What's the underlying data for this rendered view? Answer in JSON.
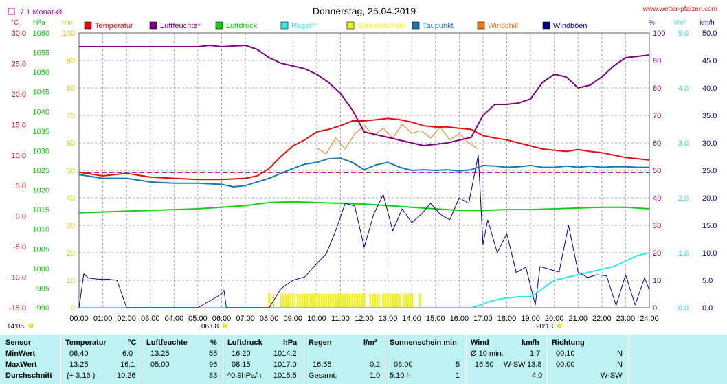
{
  "chart_data": {
    "type": "line",
    "title": "Donnerstag, 25.04.2019",
    "source": "www.wetter-pfalzen.com",
    "legend_box_label": "7.1 Monat-Ø",
    "legend": [
      {
        "name": "Temperatur",
        "color": "#e01010"
      },
      {
        "name": "Luftfeuchte*",
        "color": "#800080"
      },
      {
        "name": "Luftdruck",
        "color": "#10d010"
      },
      {
        "name": "Regen*",
        "color": "#30e8e8"
      },
      {
        "name": "Sonnenschein",
        "color": "#f0f020"
      },
      {
        "name": "Taupunkt",
        "color": "#1878b8"
      },
      {
        "name": "Windchill",
        "color": "#f07810"
      },
      {
        "name": "Windböen",
        "color": "#000090"
      }
    ],
    "x_ticks": [
      "00:00",
      "01:00",
      "02:00",
      "03:00",
      "04:00",
      "05:00",
      "06:00",
      "07:00",
      "08:00",
      "09:00",
      "10:00",
      "11:00",
      "12:00",
      "13:00",
      "14:00",
      "15:00",
      "16:00",
      "17:00",
      "18:00",
      "19:00",
      "20:00",
      "21:00",
      "22:00",
      "23:00",
      "24:00"
    ],
    "axes": {
      "temp": {
        "unit": "°C",
        "ticks": [
          "30.0",
          "25.0",
          "20.0",
          "15.0",
          "10.0",
          "5.0",
          "0.0",
          "-5.0",
          "-10.0",
          "-15.0"
        ],
        "ylim": [
          -15,
          30
        ],
        "color": "#e01010"
      },
      "pressure": {
        "unit": "hPa",
        "ticks": [
          "1060",
          "1055",
          "1050",
          "1045",
          "1040",
          "1035",
          "1030",
          "1025",
          "1020",
          "1015",
          "1010",
          "1005",
          "1000",
          "995",
          "990"
        ],
        "ylim": [
          990,
          1060
        ],
        "color": "#10c010"
      },
      "sun": {
        "unit": "min",
        "ticks": [
          "100",
          "90",
          "80",
          "70",
          "60",
          "50",
          "40",
          "30",
          "20",
          "10",
          "0"
        ],
        "ylim": [
          0,
          100
        ],
        "color": "#d0d000"
      },
      "humidity": {
        "unit": "%",
        "ticks": [
          "100",
          "90",
          "80",
          "70",
          "60",
          "50",
          "40",
          "30",
          "20",
          "10",
          "0"
        ],
        "ylim": [
          0,
          100
        ],
        "color": "#800080"
      },
      "rain": {
        "unit": "l/m²",
        "ticks": [
          "5.0",
          "4.0",
          "3.0",
          "2.0",
          "1.0",
          "0.0"
        ],
        "ylim": [
          0,
          5
        ],
        "color": "#30d8d8"
      },
      "wind": {
        "unit": "km/h",
        "ticks": [
          "50.0",
          "45.0",
          "40.0",
          "35.0",
          "30.0",
          "25.0",
          "20.0",
          "15.0",
          "10.0",
          "5.0",
          "0.0"
        ],
        "ylim": [
          0,
          50
        ],
        "color": "#000080"
      }
    },
    "monthly_avg_temp": 7.1,
    "sunrise": "06:08",
    "sunset": "20:13",
    "daylength": "14:05",
    "series": [
      {
        "name": "Temperatur",
        "axis": "temp",
        "color": "#e01010",
        "x": [
          0,
          1,
          2,
          3,
          4,
          5,
          6,
          7,
          7.5,
          8,
          8.5,
          9,
          9.5,
          10,
          10.5,
          11,
          11.5,
          12,
          12.5,
          13,
          13.5,
          14,
          14.5,
          15,
          15.5,
          16,
          16.5,
          17,
          17.5,
          18,
          18.5,
          19,
          19.5,
          20,
          20.5,
          21,
          21.5,
          22,
          22.5,
          23,
          23.5,
          24
        ],
        "values": [
          7.2,
          6.6,
          7.0,
          6.4,
          6.2,
          6.0,
          6.0,
          6.2,
          6.6,
          7.8,
          9.8,
          11.5,
          12.5,
          13.8,
          14.2,
          14.8,
          15.6,
          15.6,
          15.8,
          16.0,
          15.8,
          15.4,
          14.8,
          14.6,
          14.6,
          14.4,
          14.2,
          13.2,
          12.8,
          12.5,
          12.0,
          11.5,
          11.0,
          10.8,
          10.6,
          10.9,
          10.6,
          10.4,
          10.0,
          9.6,
          9.4,
          9.2
        ]
      },
      {
        "name": "Luftfeuchte*",
        "axis": "humidity",
        "color": "#800080",
        "x": [
          0,
          1,
          2,
          3,
          4,
          5,
          5.5,
          6,
          7,
          7.5,
          8,
          8.5,
          9,
          9.5,
          10,
          10.5,
          11,
          11.5,
          12,
          12.5,
          13,
          13.5,
          14,
          14.5,
          15,
          15.5,
          16,
          16.5,
          17,
          17.5,
          18,
          18.5,
          19,
          19.5,
          20,
          20.5,
          21,
          21.5,
          22,
          22.5,
          23,
          23.5,
          24
        ],
        "values": [
          95,
          95,
          95,
          95,
          95,
          95,
          95.5,
          95,
          95.5,
          94,
          91,
          89,
          88,
          87,
          85,
          82,
          78,
          72,
          64,
          63,
          62,
          61,
          60,
          59,
          59.5,
          60,
          61,
          62,
          70,
          74,
          74,
          74.5,
          76,
          82,
          85,
          84,
          80,
          81,
          84,
          88,
          91,
          91.5,
          92
        ]
      },
      {
        "name": "Luftdruck",
        "axis": "pressure",
        "color": "#10d010",
        "x": [
          0,
          1,
          2,
          3,
          4,
          5,
          6,
          7,
          8,
          9,
          10,
          11,
          12,
          13,
          14,
          15,
          16,
          17,
          18,
          19,
          20,
          21,
          22,
          23,
          24
        ],
        "values": [
          1014.2,
          1014.4,
          1014.6,
          1014.8,
          1015,
          1015.2,
          1015.6,
          1016,
          1016.8,
          1017,
          1016.8,
          1016.6,
          1016.4,
          1016,
          1015.6,
          1015.2,
          1014.8,
          1014.8,
          1015,
          1015,
          1015.2,
          1015.4,
          1015.6,
          1015.6,
          1015.2
        ]
      },
      {
        "name": "Regen*",
        "axis": "rain",
        "color": "#30e8e8",
        "x": [
          0,
          16.5,
          16.9,
          17.2,
          17.6,
          18,
          18.5,
          19,
          19.2,
          19.5,
          20,
          20.5,
          21,
          21.5,
          22,
          22.5,
          23,
          23.5,
          24
        ],
        "values": [
          0,
          0,
          0.05,
          0.1,
          0.15,
          0.18,
          0.2,
          0.2,
          0.25,
          0.35,
          0.5,
          0.55,
          0.6,
          0.65,
          0.7,
          0.75,
          0.85,
          0.95,
          1.0
        ]
      },
      {
        "name": "Taupunkt",
        "axis": "temp",
        "color": "#1878b8",
        "x": [
          0,
          1,
          2,
          3,
          4,
          5,
          6,
          6.5,
          7,
          7.5,
          8,
          8.5,
          9,
          9.5,
          10,
          10.5,
          11,
          11.5,
          12,
          12.5,
          13,
          13.5,
          14,
          14.5,
          15,
          15.5,
          16,
          16.5,
          17,
          17.5,
          18,
          18.5,
          19,
          19.5,
          20,
          20.5,
          21,
          21.5,
          22,
          22.5,
          23,
          23.5,
          24
        ],
        "values": [
          6.8,
          6.2,
          6.2,
          5.6,
          5.4,
          5.4,
          5.2,
          4.8,
          5.0,
          5.6,
          6.2,
          7.0,
          7.8,
          8.5,
          8.8,
          9.4,
          9.5,
          8.8,
          7.6,
          8.4,
          8.8,
          8.0,
          7.5,
          7.6,
          7.5,
          7.6,
          7.4,
          7.6,
          8.3,
          8.2,
          8.0,
          8.1,
          8.3,
          8.0,
          8.0,
          8.2,
          8.0,
          8.2,
          8.0,
          8.1,
          8.1,
          8.0,
          8.0
        ]
      },
      {
        "name": "Windchill",
        "axis": "temp",
        "color": "#f07810",
        "x": [
          10,
          10.4,
          10.8,
          11.2,
          11.6,
          12,
          12.4,
          12.8,
          13.2,
          13.6,
          14,
          14.4,
          14.8,
          15.2,
          15.6,
          16,
          16.4,
          16.8
        ],
        "values": [
          11.2,
          10.2,
          12.8,
          11.0,
          13.5,
          14.8,
          13.2,
          14.4,
          12.8,
          15.0,
          13.6,
          14.0,
          12.8,
          14.6,
          12.5,
          13.5,
          12.0,
          11.0
        ]
      },
      {
        "name": "Windböen",
        "axis": "wind",
        "color": "#000090",
        "x": [
          0,
          0.2,
          0.4,
          0.8,
          1.2,
          1.6,
          2,
          2.2,
          4,
          5,
          6,
          6.1,
          6.2,
          8,
          8.5,
          9,
          9.5,
          10,
          10.4,
          10.8,
          11.2,
          11.6,
          12,
          12.4,
          12.8,
          13.2,
          13.6,
          14,
          14.4,
          14.8,
          15.2,
          15.6,
          16,
          16.4,
          16.8,
          17,
          17.2,
          17.6,
          18,
          18.4,
          18.8,
          19.2,
          19.4,
          19.8,
          20.2,
          20.6,
          21,
          21.4,
          21.8,
          22.2,
          22.6,
          23,
          23.4,
          23.8,
          24
        ],
        "values": [
          0,
          6.2,
          5.4,
          5.2,
          5.2,
          5.0,
          0,
          0,
          0,
          0,
          2.5,
          3.2,
          0,
          0,
          3.5,
          5.0,
          5.6,
          8.0,
          9.8,
          14.0,
          19.0,
          18.5,
          11.0,
          17.0,
          20.6,
          14.0,
          18.0,
          15.5,
          17.0,
          19.0,
          17.0,
          16.0,
          20.0,
          19.0,
          27.8,
          11.5,
          16.0,
          10.0,
          13.5,
          6.4,
          7.4,
          0.5,
          7.5,
          7.0,
          6.5,
          15.0,
          6.5,
          5.5,
          6.0,
          5.8,
          0.4,
          6.0,
          0.5,
          5.5,
          3.2
        ]
      }
    ],
    "sunshine_intervals": [
      [
        7.95,
        8.05
      ],
      [
        8.15,
        8.2
      ],
      [
        8.45,
        9.1
      ],
      [
        9.15,
        12.05
      ],
      [
        12.2,
        12.65
      ],
      [
        12.75,
        13.55
      ],
      [
        13.6,
        14.05
      ],
      [
        14.3,
        14.38
      ]
    ]
  },
  "stats": {
    "headers": {
      "sensor": "Sensor",
      "temp": "Temperatur",
      "temp_unit": "°C",
      "hum": "Luftfeuchte",
      "hum_unit": "%",
      "press": "Luftdruck",
      "press_unit": "hPa",
      "rain": "Regen",
      "rain_unit": "l/m²",
      "sun": "Sonnenschein min",
      "wind": "Wind",
      "wind_unit": "km/h",
      "dir": "Richtung"
    },
    "rows": [
      {
        "label": "MinWert",
        "temp_time": "06:40",
        "temp_val": "6.0",
        "hum_time": "13:25",
        "hum_val": "55",
        "press_time": "16:20",
        "press_val": "1014.2",
        "rain_time": "",
        "rain_val": "",
        "sun_time": "",
        "sun_val": "",
        "wind_time": "Ø 10 min.",
        "wind_dir": "",
        "wind_val": "1.7",
        "dir_time": "00:10",
        "dir_val": "N"
      },
      {
        "label": "MaxWert",
        "temp_time": "13:25",
        "temp_val": "16.1",
        "hum_time": "05:00",
        "hum_val": "96",
        "press_time": "08:15",
        "press_val": "1017.0",
        "rain_time": "16:55",
        "rain_val": "0.2",
        "sun_time": "08:00",
        "sun_val": "5",
        "wind_time": "16:50",
        "wind_dir": "W-SW",
        "wind_val": "13.8",
        "dir_time": "00:00",
        "dir_val": "N"
      },
      {
        "label": "Durchschnitt",
        "temp_time": "(+ 3.16 )",
        "temp_val": "10.26",
        "hum_time": "",
        "hum_val": "83",
        "press_time": "^0.9hPa/h",
        "press_val": "1015.5",
        "rain_time": "Gesamt:",
        "rain_val": "1.0",
        "sun_time": "5:10 h",
        "sun_val": "1",
        "wind_time": "",
        "wind_dir": "",
        "wind_val": "4.0",
        "dir_time": "",
        "dir_val": "W-SW"
      }
    ]
  }
}
